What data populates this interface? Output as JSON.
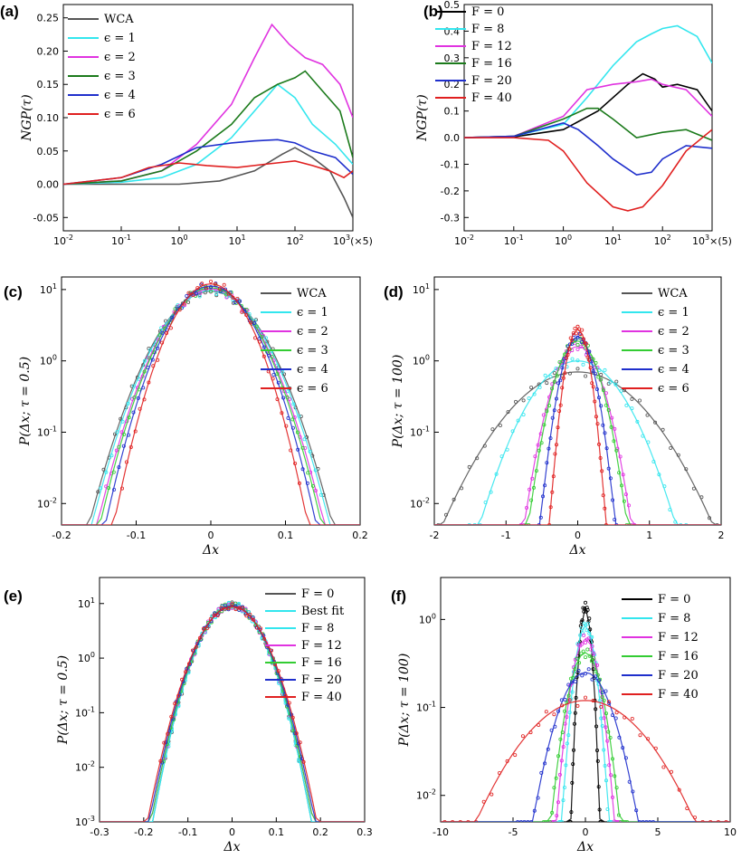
{
  "chart_data": [
    {
      "panel": "(a)",
      "type": "line",
      "ylabel": "NGP(τ)",
      "xscale": "log",
      "xlim": [
        0.01,
        1000
      ],
      "ylim": [
        -0.07,
        0.27
      ],
      "xticks": [
        "10^-2",
        "10^-1",
        "10^0",
        "10^1",
        "10^2",
        "10^3(×5)"
      ],
      "yticks": [
        "0.25",
        "0.20",
        "0.15",
        "0.10",
        "0.05",
        "0.00",
        "-0.05"
      ],
      "legend": "top-left",
      "series": [
        {
          "name": "WCA",
          "color": "#555555",
          "x": [
            0.01,
            0.1,
            1,
            5,
            20,
            60,
            100,
            200,
            400,
            700,
            1000
          ],
          "y": [
            0,
            0,
            0,
            0.005,
            0.02,
            0.045,
            0.055,
            0.04,
            0.02,
            -0.02,
            -0.05
          ]
        },
        {
          "name": "ϵ = 1",
          "color": "#33e6ee",
          "x": [
            0.01,
            0.1,
            0.5,
            2,
            8,
            20,
            50,
            100,
            200,
            500,
            1000
          ],
          "y": [
            0,
            0.003,
            0.01,
            0.03,
            0.07,
            0.11,
            0.15,
            0.13,
            0.09,
            0.06,
            0.03
          ]
        },
        {
          "name": "ϵ = 2",
          "color": "#e033e0",
          "x": [
            0.01,
            0.1,
            0.5,
            2,
            8,
            20,
            40,
            80,
            150,
            300,
            600,
            1000
          ],
          "y": [
            0,
            0.005,
            0.02,
            0.06,
            0.12,
            0.19,
            0.24,
            0.21,
            0.19,
            0.18,
            0.15,
            0.1
          ]
        },
        {
          "name": "ϵ = 3",
          "color": "#1b7a1b",
          "x": [
            0.01,
            0.1,
            0.5,
            2,
            8,
            20,
            50,
            100,
            150,
            300,
            600,
            1000
          ],
          "y": [
            0,
            0.005,
            0.02,
            0.05,
            0.09,
            0.13,
            0.15,
            0.16,
            0.17,
            0.14,
            0.11,
            0.04
          ]
        },
        {
          "name": "ϵ = 4",
          "color": "#1f2fcc",
          "x": [
            0.01,
            0.1,
            0.5,
            2,
            8,
            20,
            50,
            100,
            200,
            500,
            1000
          ],
          "y": [
            0,
            0.01,
            0.03,
            0.055,
            0.062,
            0.065,
            0.067,
            0.062,
            0.05,
            0.04,
            0.015
          ]
        },
        {
          "name": "ϵ = 6",
          "color": "#e02020",
          "x": [
            0.01,
            0.1,
            0.3,
            1,
            3,
            10,
            30,
            100,
            200,
            400,
            700,
            1000
          ],
          "y": [
            0,
            0.01,
            0.025,
            0.032,
            0.028,
            0.025,
            0.03,
            0.035,
            0.028,
            0.02,
            0.01,
            0.02
          ]
        }
      ]
    },
    {
      "panel": "(b)",
      "type": "line",
      "ylabel": "NGP(τ)",
      "xscale": "log",
      "xlim": [
        0.01,
        1000
      ],
      "ylim": [
        -0.35,
        0.5
      ],
      "xticks": [
        "10^-2",
        "10^-1",
        "10^0",
        "10^1",
        "10^2",
        "10^3×(5)"
      ],
      "yticks": [
        "0.5",
        "0.4",
        "0.3",
        "0.2",
        "0.1",
        "0.0",
        "-0.1",
        "-0.2",
        "-0.3"
      ],
      "legend": "top-left",
      "series": [
        {
          "name": "F = 0",
          "color": "#000000",
          "x": [
            0.01,
            0.1,
            1,
            5,
            20,
            40,
            70,
            100,
            200,
            500,
            1000
          ],
          "y": [
            0,
            0.003,
            0.03,
            0.1,
            0.2,
            0.24,
            0.22,
            0.19,
            0.2,
            0.18,
            0.1
          ]
        },
        {
          "name": "F = 8",
          "color": "#33e6ee",
          "x": [
            0.01,
            0.1,
            1,
            3,
            10,
            30,
            60,
            100,
            200,
            500,
            1000
          ],
          "y": [
            0,
            0.005,
            0.05,
            0.15,
            0.27,
            0.36,
            0.39,
            0.41,
            0.42,
            0.38,
            0.28
          ]
        },
        {
          "name": "F = 12",
          "color": "#e033e0",
          "x": [
            0.01,
            0.1,
            1,
            3,
            10,
            30,
            60,
            100,
            300,
            1000
          ],
          "y": [
            0,
            0.005,
            0.08,
            0.18,
            0.2,
            0.21,
            0.22,
            0.2,
            0.18,
            0.08
          ]
        },
        {
          "name": "F = 16",
          "color": "#1b7a1b",
          "x": [
            0.01,
            0.1,
            1,
            3,
            5,
            10,
            30,
            100,
            300,
            1000
          ],
          "y": [
            0,
            0.005,
            0.07,
            0.11,
            0.11,
            0.07,
            0.0,
            0.02,
            0.03,
            -0.01
          ]
        },
        {
          "name": "F = 20",
          "color": "#1f2fcc",
          "x": [
            0.01,
            0.1,
            0.5,
            1,
            2,
            5,
            10,
            30,
            60,
            100,
            300,
            1000
          ],
          "y": [
            0,
            0.005,
            0.04,
            0.055,
            0.03,
            -0.03,
            -0.08,
            -0.14,
            -0.13,
            -0.08,
            -0.03,
            -0.04
          ]
        },
        {
          "name": "F = 40",
          "color": "#e02020",
          "x": [
            0.01,
            0.1,
            0.5,
            1,
            3,
            10,
            20,
            40,
            100,
            300,
            1000
          ],
          "y": [
            0,
            0,
            -0.01,
            -0.05,
            -0.17,
            -0.26,
            -0.275,
            -0.26,
            -0.18,
            -0.05,
            0.03
          ]
        }
      ]
    },
    {
      "panel": "(c)",
      "type": "scatter",
      "ylabel": "P(Δx; τ = 0.5)",
      "xlabel": "Δx",
      "yscale": "log",
      "xlim": [
        -0.2,
        0.2
      ],
      "ylim": [
        0.005,
        15
      ],
      "xticks": [
        "-0.2",
        "-0.1",
        "0",
        "0.1",
        "0.2"
      ],
      "yticks": [
        "10^1",
        "10^0",
        "10^-1",
        "10^-2"
      ],
      "legend": "top-right",
      "series": [
        {
          "name": "WCA",
          "color": "#555555",
          "peak": 9.5,
          "sigma": 0.042
        },
        {
          "name": "ϵ = 1",
          "color": "#33e6ee",
          "peak": 9.7,
          "sigma": 0.041
        },
        {
          "name": "ϵ = 2",
          "color": "#e033e0",
          "peak": 10.2,
          "sigma": 0.039
        },
        {
          "name": "ϵ = 3",
          "color": "#33cc33",
          "peak": 10.6,
          "sigma": 0.038
        },
        {
          "name": "ϵ = 4",
          "color": "#1f2fcc",
          "peak": 11.2,
          "sigma": 0.036
        },
        {
          "name": "ϵ = 6",
          "color": "#e02020",
          "peak": 12.0,
          "sigma": 0.033
        }
      ]
    },
    {
      "panel": "(d)",
      "type": "scatter",
      "ylabel": "P(Δx; τ = 100)",
      "xlabel": "Δx",
      "yscale": "log",
      "xlim": [
        -2,
        2
      ],
      "ylim": [
        0.005,
        15
      ],
      "xticks": [
        "-2",
        "-1",
        "0",
        "1",
        "2"
      ],
      "yticks": [
        "10^1",
        "10^0",
        "10^-1",
        "10^-2"
      ],
      "legend": "top-right",
      "series": [
        {
          "name": "WCA",
          "color": "#555555",
          "peak": 0.7,
          "sigma": 0.6
        },
        {
          "name": "ϵ = 1",
          "color": "#33e6ee",
          "peak": 1.0,
          "sigma": 0.42
        },
        {
          "name": "ϵ = 2",
          "color": "#e033e0",
          "peak": 1.6,
          "sigma": 0.22
        },
        {
          "name": "ϵ = 3",
          "color": "#33cc33",
          "peak": 1.9,
          "sigma": 0.2
        },
        {
          "name": "ϵ = 4",
          "color": "#1f2fcc",
          "peak": 2.2,
          "sigma": 0.15
        },
        {
          "name": "ϵ = 6",
          "color": "#e02020",
          "peak": 2.8,
          "sigma": 0.11
        }
      ]
    },
    {
      "panel": "(e)",
      "type": "scatter",
      "ylabel": "P(Δx; τ = 0.5)",
      "xlabel": "Δx",
      "yscale": "log",
      "xlim": [
        -0.3,
        0.3
      ],
      "ylim": [
        0.001,
        30
      ],
      "xticks": [
        "-0.3",
        "-0.2",
        "-0.1",
        "0",
        "0.1",
        "0.2",
        "0.3"
      ],
      "yticks": [
        "10^1",
        "10^0",
        "10^-1",
        "10^-2",
        "10^-3"
      ],
      "legend": "top-right",
      "series": [
        {
          "name": "F = 0",
          "color": "#555555",
          "peak": 9.5,
          "sigma": 0.042
        },
        {
          "name": "Best fit",
          "color": "#33e6ee",
          "peak": 9.5,
          "sigma": 0.042
        },
        {
          "name": "F = 8",
          "color": "#33e6ee",
          "peak": 9.4,
          "sigma": 0.042
        },
        {
          "name": "F = 12",
          "color": "#e033e0",
          "peak": 9.3,
          "sigma": 0.043
        },
        {
          "name": "F = 16",
          "color": "#33cc33",
          "peak": 9.2,
          "sigma": 0.043
        },
        {
          "name": "F = 20",
          "color": "#1f2fcc",
          "peak": 9.0,
          "sigma": 0.044
        },
        {
          "name": "F = 40",
          "color": "#e02020",
          "peak": 8.8,
          "sigma": 0.045
        }
      ]
    },
    {
      "panel": "(f)",
      "type": "scatter",
      "ylabel": "P(Δx; τ = 100)",
      "xlabel": "Δx",
      "yscale": "log",
      "xlim": [
        -10,
        10
      ],
      "ylim": [
        0.005,
        3
      ],
      "xticks": [
        "-10",
        "-5",
        "0",
        "5",
        "10"
      ],
      "yticks": [
        "10^0",
        "10^-1",
        "10^-2"
      ],
      "legend": "right",
      "series": [
        {
          "name": "F = 0",
          "color": "#000000",
          "peak": 1.4,
          "sigma": 0.3
        },
        {
          "name": "F = 8",
          "color": "#33e6ee",
          "peak": 0.85,
          "sigma": 0.5
        },
        {
          "name": "F = 12",
          "color": "#e033e0",
          "peak": 0.6,
          "sigma": 0.65
        },
        {
          "name": "F = 16",
          "color": "#33cc33",
          "peak": 0.42,
          "sigma": 0.8
        },
        {
          "name": "F = 20",
          "color": "#1f2fcc",
          "peak": 0.25,
          "sigma": 1.3
        },
        {
          "name": "F = 40",
          "color": "#e02020",
          "peak": 0.12,
          "sigma": 3.0
        }
      ]
    }
  ],
  "panels": {
    "a": {
      "label": "(a)",
      "ylabel": "NGP(τ)",
      "legend": [
        "WCA",
        "ϵ = 1",
        "ϵ = 2",
        "ϵ = 3",
        "ϵ = 4",
        "ϵ = 6"
      ]
    },
    "b": {
      "label": "(b)",
      "ylabel": "NGP(τ)",
      "legend": [
        "F = 0",
        "F = 8",
        "F = 12",
        "F = 16",
        "F = 20",
        "F = 40"
      ]
    },
    "c": {
      "label": "(c)",
      "ylabel": "P(Δx; τ = 0.5)",
      "xlabel": "Δx",
      "legend": [
        "WCA",
        "ϵ = 1",
        "ϵ = 2",
        "ϵ = 3",
        "ϵ = 4",
        "ϵ = 6"
      ]
    },
    "d": {
      "label": "(d)",
      "ylabel": "P(Δx; τ = 100)",
      "xlabel": "Δx",
      "legend": [
        "WCA",
        "ϵ = 1",
        "ϵ = 2",
        "ϵ = 3",
        "ϵ = 4",
        "ϵ = 6"
      ]
    },
    "e": {
      "label": "(e)",
      "ylabel": "P(Δx; τ = 0.5)",
      "xlabel": "Δx",
      "legend": [
        "F = 0",
        "Best fit",
        "F = 8",
        "F = 12",
        "F = 16",
        "F = 20",
        "F = 40"
      ]
    },
    "f": {
      "label": "(f)",
      "ylabel": "P(Δx; τ = 100)",
      "xlabel": "Δx",
      "legend": [
        "F = 0",
        "F = 8",
        "F = 12",
        "F = 16",
        "F = 20",
        "F = 40"
      ]
    }
  }
}
